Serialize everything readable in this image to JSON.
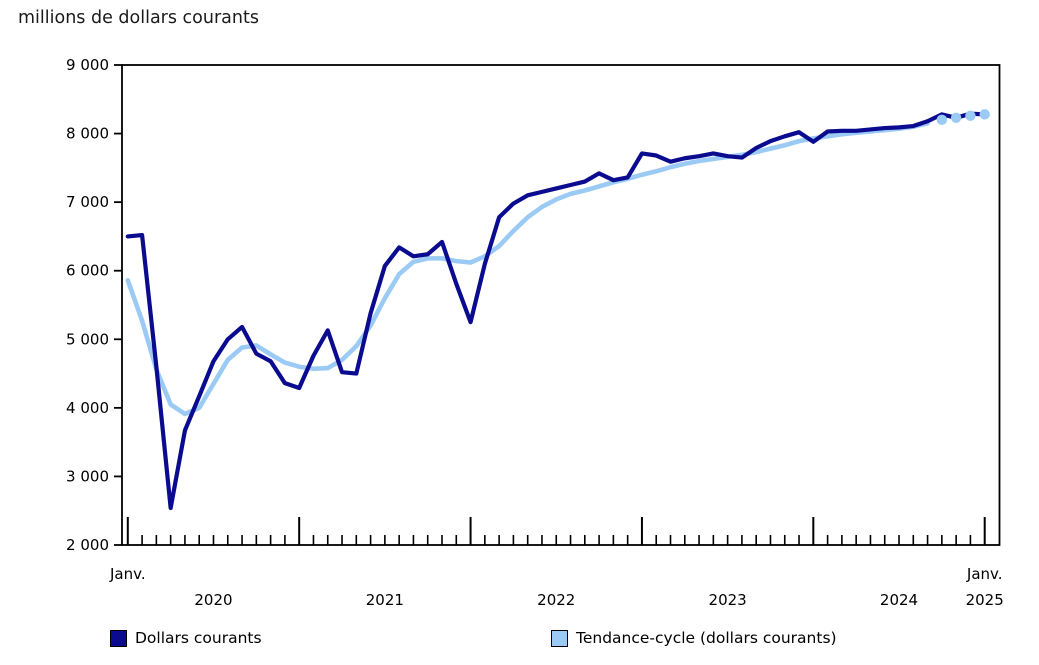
{
  "page": {
    "title": "millions de dollars courants"
  },
  "legend": [
    {
      "label": "Dollars courants",
      "color": "#0B0B8F"
    },
    {
      "label": "Tendance-cycle (dollars courants)",
      "color": "#9BCBF5"
    }
  ],
  "chart_data": {
    "type": "line",
    "title": "millions de dollars courants",
    "ylabel": "millions de dollars courants",
    "ylim": [
      2000,
      9000
    ],
    "y_tick_step": 1000,
    "y_tick_labels": [
      "2 000",
      "3 000",
      "4 000",
      "5 000",
      "6 000",
      "7 000",
      "8 000",
      "9 000"
    ],
    "x_range": "Janv. 2020 - Janv. 2025",
    "x_monthly_points": 61,
    "x_axis": {
      "first_tick_label": "Janv.",
      "last_tick_label": "Janv.",
      "year_labels": [
        "2020",
        "2021",
        "2022",
        "2023",
        "2024",
        "2025"
      ]
    },
    "grid": false,
    "legend_position": "bottom",
    "series": [
      {
        "name": "Dollars courants",
        "color": "#0B0B8F",
        "style": "solid",
        "values": [
          6500,
          6520,
          4600,
          2540,
          3670,
          4170,
          4680,
          5000,
          5180,
          4790,
          4680,
          4360,
          4290,
          4760,
          5130,
          4520,
          4500,
          5380,
          6070,
          6340,
          6210,
          6240,
          6420,
          5810,
          5250,
          6100,
          6780,
          6980,
          7100,
          7150,
          7200,
          7250,
          7300,
          7420,
          7320,
          7360,
          7710,
          7680,
          7590,
          7640,
          7670,
          7710,
          7670,
          7650,
          7790,
          7890,
          7960,
          8020,
          7880,
          8030,
          8040,
          8040,
          8060,
          8080,
          8090,
          8110,
          8180,
          8280,
          8230,
          8290,
          8280
        ]
      },
      {
        "name": "Tendance-cycle (dollars courants)",
        "color": "#9BCBF5",
        "style": "solid-with-end-markers",
        "end_marker_points": 4,
        "values": [
          5860,
          5270,
          4560,
          4050,
          3910,
          4000,
          4350,
          4700,
          4880,
          4910,
          4780,
          4660,
          4600,
          4570,
          4580,
          4700,
          4900,
          5200,
          5600,
          5950,
          6130,
          6180,
          6180,
          6140,
          6120,
          6210,
          6360,
          6580,
          6780,
          6930,
          7040,
          7120,
          7170,
          7230,
          7290,
          7340,
          7400,
          7450,
          7510,
          7560,
          7600,
          7630,
          7660,
          7690,
          7730,
          7780,
          7830,
          7890,
          7930,
          7960,
          7990,
          8010,
          8030,
          8050,
          8070,
          8100,
          8150,
          8200,
          8230,
          8260,
          8280
        ]
      }
    ]
  }
}
